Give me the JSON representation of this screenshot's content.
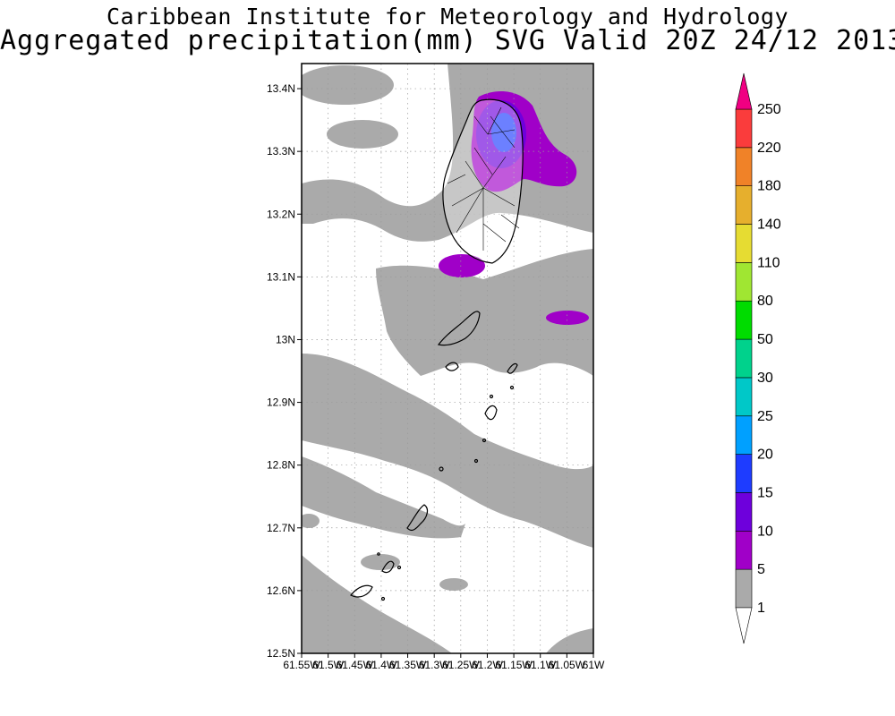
{
  "header": {
    "title": "Caribbean Institute for Meteorology and Hydrology",
    "subtitle": "Aggregated precipitation(mm) SVG Valid 20Z 24/12 2013"
  },
  "map": {
    "region": "St. Vincent and the Grenadines",
    "lat_range": [
      12.5,
      13.44
    ],
    "lon_range": [
      -61.55,
      -61.0
    ],
    "lat_ticks": [
      "12.5N",
      "12.6N",
      "12.7N",
      "12.8N",
      "12.9N",
      "13N",
      "13.1N",
      "13.2N",
      "13.3N",
      "13.4N"
    ],
    "lon_ticks": [
      "61.55W",
      "61.5W",
      "61.45W",
      "61.4W",
      "61.35W",
      "61.3W",
      "61.25W",
      "61.2W",
      "61.15W",
      "61.1W",
      "61.05W",
      "61W"
    ],
    "grid": true,
    "land_outline_color": "#000000"
  },
  "legend": {
    "levels": [
      "1",
      "5",
      "10",
      "15",
      "20",
      "25",
      "30",
      "50",
      "80",
      "110",
      "140",
      "180",
      "220",
      "250"
    ],
    "colors": [
      "#aaaaaa",
      "#a000c8",
      "#6e00dc",
      "#1e3cff",
      "#00a0ff",
      "#00c8c8",
      "#00d28c",
      "#00dc00",
      "#a0e632",
      "#e6dc32",
      "#e6af2d",
      "#f08228",
      "#fa3c3c",
      "#f00082"
    ],
    "under_color": "#ffffff",
    "over_color": "#f00082"
  }
}
